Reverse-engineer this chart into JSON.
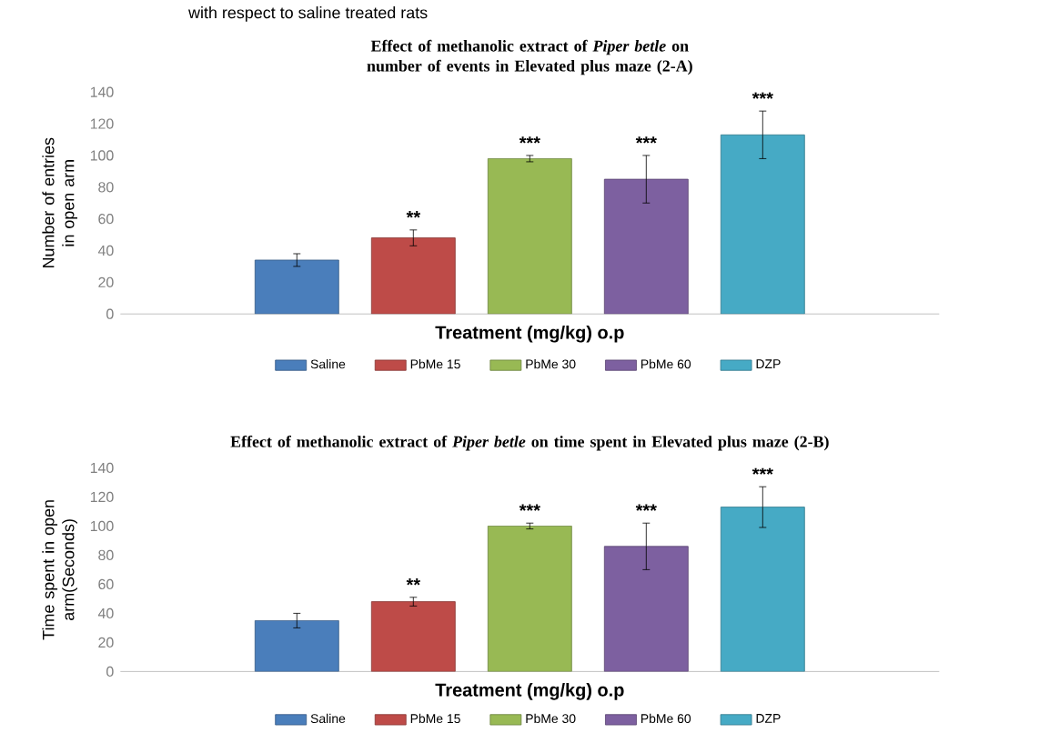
{
  "chart_data": [
    {
      "type": "bar",
      "title": "Effect of methanolic  extract of *Piper betle* on number  of events in Elevated plus maze (2-A)",
      "xlabel": "Treatment (mg/kg) o.p",
      "ylabel": "Number of entries in open arm",
      "categories": [
        null
      ],
      "ylim": [
        0,
        140
      ],
      "yticks": [
        0,
        20,
        40,
        60,
        80,
        100,
        120,
        140
      ],
      "legend": "bottom",
      "annotations": [
        "with respect to saline treated rats"
      ],
      "series": [
        {
          "name": "Saline",
          "color": "#4a7ebb",
          "values": [
            34
          ],
          "errors": [
            4
          ],
          "value_labels": [
            null
          ]
        },
        {
          "name": "PbMe 15",
          "color": "#be4b48",
          "values": [
            48
          ],
          "errors": [
            5
          ],
          "value_labels": [
            "**"
          ]
        },
        {
          "name": "PbMe 30",
          "color": "#98b954",
          "values": [
            98
          ],
          "errors": [
            2
          ],
          "value_labels": [
            "***"
          ]
        },
        {
          "name": "PbMe 60",
          "color": "#7d60a0",
          "values": [
            85
          ],
          "errors": [
            15
          ],
          "value_labels": [
            "***"
          ]
        },
        {
          "name": "DZP",
          "color": "#46aac5",
          "values": [
            113
          ],
          "errors": [
            15
          ],
          "value_labels": [
            "***"
          ]
        }
      ]
    },
    {
      "type": "bar",
      "title": "Effect of methanolic  extract of *Piper betle* on time spent in Elevated plus maze (2-B)",
      "xlabel": "Treatment (mg/kg) o.p",
      "ylabel": "Time spent in open arm(Seconds)",
      "categories": [
        null
      ],
      "ylim": [
        0,
        140
      ],
      "yticks": [
        0,
        20,
        40,
        60,
        80,
        100,
        120,
        140
      ],
      "legend": "bottom",
      "series": [
        {
          "name": "Saline",
          "color": "#4a7ebb",
          "values": [
            35
          ],
          "errors": [
            5
          ],
          "value_labels": [
            null
          ]
        },
        {
          "name": "PbMe 15",
          "color": "#be4b48",
          "values": [
            48
          ],
          "errors": [
            3
          ],
          "value_labels": [
            "**"
          ]
        },
        {
          "name": "PbMe 30",
          "color": "#98b954",
          "values": [
            100
          ],
          "errors": [
            2
          ],
          "value_labels": [
            "***"
          ]
        },
        {
          "name": "PbMe 60",
          "color": "#7d60a0",
          "values": [
            86
          ],
          "errors": [
            16
          ],
          "value_labels": [
            "***"
          ]
        },
        {
          "name": "DZP",
          "color": "#46aac5",
          "values": [
            113
          ],
          "errors": [
            14
          ],
          "value_labels": [
            "***"
          ]
        }
      ]
    }
  ]
}
